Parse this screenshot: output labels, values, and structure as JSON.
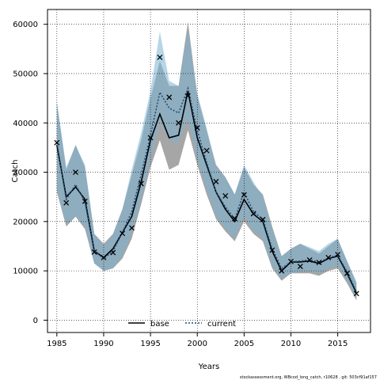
{
  "chart_data": {
    "type": "line",
    "title": "",
    "xlabel": "Years",
    "ylabel": "Catch",
    "xlim": [
      1984,
      2018.5
    ],
    "ylim": [
      -2500,
      63000
    ],
    "xticks": [
      1985,
      1990,
      1995,
      2000,
      2005,
      2010,
      2015
    ],
    "yticks": [
      0,
      10000,
      20000,
      30000,
      40000,
      50000,
      60000
    ],
    "grid": true,
    "legend_placement": "bottom-center",
    "observed": {
      "marker": "x",
      "x": [
        1985,
        1986,
        1987,
        1988,
        1989,
        1990,
        1991,
        1992,
        1993,
        1994,
        1995,
        1996,
        1997,
        1998,
        1999,
        2000,
        2001,
        2002,
        2003,
        2004,
        2005,
        2006,
        2007,
        2008,
        2009,
        2010,
        2011,
        2012,
        2013,
        2014,
        2015,
        2016,
        2017
      ],
      "y": [
        36000,
        23800,
        30000,
        24100,
        13800,
        12700,
        13700,
        17600,
        18700,
        27700,
        37000,
        53300,
        45200,
        40000,
        45500,
        39000,
        34400,
        28100,
        25200,
        20600,
        25400,
        21600,
        20400,
        14200,
        10000,
        11900,
        10900,
        12200,
        11700,
        12700,
        13300,
        9500,
        5400
      ]
    },
    "series": [
      {
        "name": "base",
        "line_style": "solid",
        "color": "#000000",
        "band_color": "#888888",
        "x": [
          1985,
          1986,
          1987,
          1988,
          1989,
          1990,
          1991,
          1992,
          1993,
          1994,
          1995,
          1996,
          1997,
          1998,
          1999,
          2000,
          2001,
          2002,
          2003,
          2004,
          2005,
          2006,
          2007,
          2008,
          2009,
          2010,
          2011,
          2012,
          2013,
          2014,
          2015,
          2016,
          2017
        ],
        "y": [
          35500,
          25000,
          27000,
          24500,
          14000,
          12700,
          14500,
          17800,
          21000,
          28000,
          36500,
          41800,
          37000,
          37500,
          46500,
          37000,
          31500,
          26000,
          22500,
          20000,
          24500,
          21500,
          20000,
          14000,
          10000,
          11800,
          11800,
          12000,
          11500,
          12500,
          13000,
          9500,
          5500
        ],
        "lower": [
          26000,
          19000,
          21000,
          18500,
          11500,
          10000,
          10500,
          12500,
          16500,
          23500,
          31000,
          36500,
          30500,
          31500,
          38500,
          31500,
          25500,
          20500,
          18000,
          16000,
          20000,
          17500,
          16000,
          10500,
          8000,
          9500,
          9500,
          9500,
          9000,
          10000,
          10500,
          7500,
          4000
        ],
        "upper": [
          44000,
          30500,
          35500,
          31000,
          17500,
          15500,
          17500,
          22500,
          29500,
          36500,
          45000,
          52500,
          47500,
          47500,
          60500,
          45500,
          38500,
          31500,
          29000,
          25500,
          31000,
          27500,
          25500,
          19000,
          13000,
          14500,
          15500,
          14500,
          13500,
          15000,
          16500,
          12000,
          7500
        ]
      },
      {
        "name": "current",
        "line_style": "dotted",
        "color": "#1f4e79",
        "band_color": "#7ab3d4",
        "x": [
          1985,
          1986,
          1987,
          1988,
          1989,
          1990,
          1991,
          1992,
          1993,
          1994,
          1995,
          1996,
          1997,
          1998,
          1999,
          2000,
          2001,
          2002,
          2003,
          2004,
          2005,
          2006,
          2007,
          2008,
          2009,
          2010,
          2011,
          2012,
          2013,
          2014,
          2015,
          2016,
          2017
        ],
        "y": [
          36000,
          24500,
          27500,
          24000,
          14000,
          12500,
          14000,
          17800,
          22000,
          29500,
          37500,
          46200,
          43000,
          42000,
          47000,
          38500,
          32000,
          26000,
          23000,
          20500,
          26000,
          22000,
          20500,
          14500,
          10500,
          11800,
          12000,
          12200,
          11800,
          12600,
          13200,
          9800,
          5800
        ],
        "lower": [
          26500,
          19500,
          21000,
          19000,
          11500,
          10000,
          10500,
          13000,
          17500,
          24500,
          32500,
          40500,
          36500,
          36000,
          41000,
          32500,
          26500,
          21000,
          18500,
          16500,
          21000,
          18000,
          16500,
          11000,
          8500,
          9500,
          9800,
          10000,
          9500,
          10500,
          11000,
          8000,
          4500
        ],
        "upper": [
          44500,
          31000,
          35500,
          31500,
          17500,
          15000,
          17500,
          22500,
          30500,
          38000,
          46500,
          58500,
          48500,
          47500,
          59000,
          46000,
          39000,
          31000,
          29000,
          25500,
          31500,
          28000,
          25000,
          18500,
          13000,
          14500,
          15500,
          14800,
          14000,
          15500,
          16500,
          12000,
          7800
        ]
      }
    ],
    "footnote": "stockassessment.org, WBcod_long_catch, r10628 , git: 503cf91af157"
  }
}
